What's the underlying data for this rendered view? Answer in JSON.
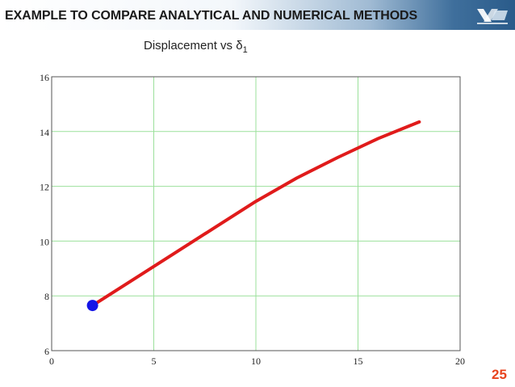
{
  "header": {
    "title": "EXAMPLE TO COMPARE ANALYTICAL AND NUMERICAL METHODS",
    "logo": "institution-logo"
  },
  "slide_number": "25",
  "colors": {
    "line": "#e01b1b",
    "marker": "#1414e6",
    "grid": "#9be09b",
    "slide_number": "#e8431d"
  },
  "chart_data": {
    "type": "line",
    "title": "Displacement vs δ",
    "title_subscript": "1",
    "xlabel": "",
    "ylabel": "",
    "xlim": [
      0,
      20
    ],
    "ylim": [
      6,
      16
    ],
    "x_ticks": [
      0,
      5,
      10,
      15,
      20
    ],
    "y_ticks": [
      6,
      8,
      10,
      12,
      14,
      16
    ],
    "grid": true,
    "series": [
      {
        "x": [
          2,
          4,
          6,
          8,
          10,
          12,
          14,
          16,
          18
        ],
        "values": [
          7.65,
          8.6,
          9.55,
          10.5,
          11.45,
          12.3,
          13.05,
          13.75,
          14.35
        ]
      }
    ],
    "marker": {
      "x": 2,
      "y": 7.65
    }
  }
}
